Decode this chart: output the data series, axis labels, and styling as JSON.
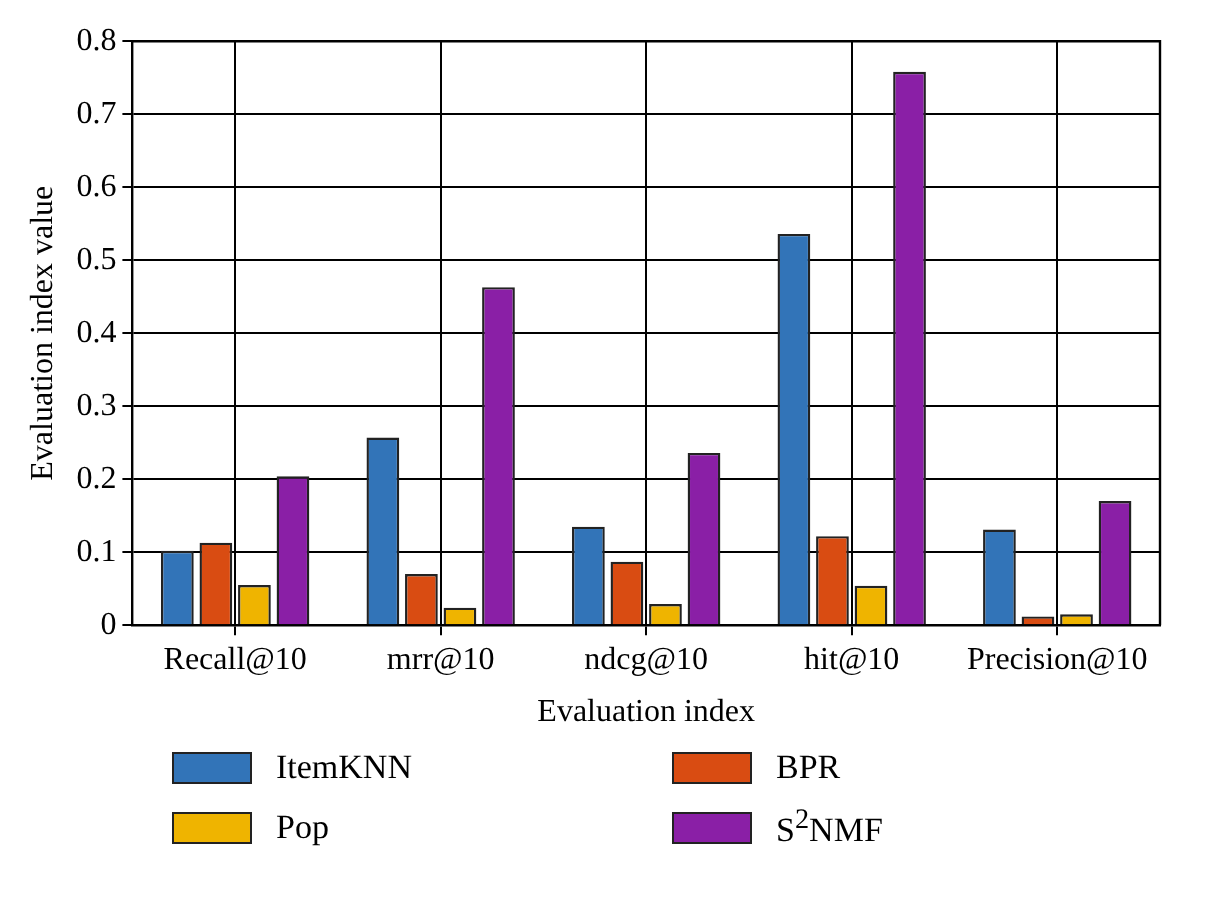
{
  "chart_data": {
    "type": "bar",
    "xlabel": "Evaluation index",
    "ylabel": "Evaluation index value",
    "categories": [
      "Recall@10",
      "mrr@10",
      "ndcg@10",
      "hit@10",
      "Precision@10"
    ],
    "series": [
      {
        "name": "ItemKNN",
        "color": "#3274b8",
        "values": [
          0.102,
          0.257,
          0.135,
          0.536,
          0.131
        ]
      },
      {
        "name": "BPR",
        "color": "#d94c12",
        "values": [
          0.113,
          0.07,
          0.087,
          0.122,
          0.012
        ]
      },
      {
        "name": "Pop",
        "color": "#efb400",
        "values": [
          0.055,
          0.024,
          0.029,
          0.054,
          0.015
        ]
      },
      {
        "name": "S$^{2}$NMF",
        "color": "#8a1fa6",
        "values": [
          0.204,
          0.463,
          0.236,
          0.758,
          0.17
        ]
      }
    ],
    "ylim": [
      0,
      0.8
    ],
    "yticks": [
      0,
      0.1,
      0.2,
      0.3,
      0.4,
      0.5,
      0.6,
      0.7,
      0.8
    ],
    "grid": true,
    "legend": "bottom"
  }
}
